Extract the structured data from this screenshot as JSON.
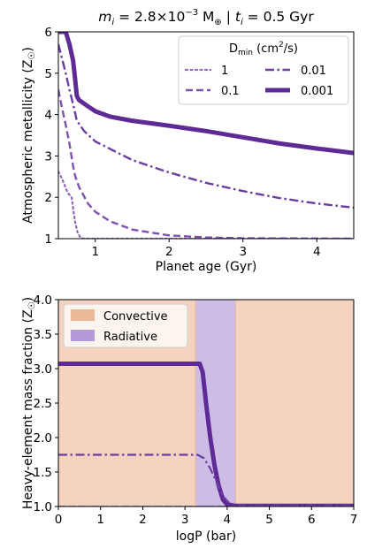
{
  "figure": {
    "title_parts": {
      "m": "m",
      "i": "i",
      "eq1": " = 2.8×10",
      "exp": "−3",
      "unit": " M",
      "earth": "⊕",
      "sep": " | ",
      "t": "t",
      "eq2": " = 0.5 Gyr"
    }
  },
  "chart_data": [
    {
      "type": "line",
      "title": "m_i = 2.8×10^-3 M⊕ | t_i = 0.5 Gyr",
      "xlabel": "Planet age (Gyr)",
      "ylabel": "Atmospheric metallicity (Z☉)",
      "ylabel_main": "Atmospheric metallicity (Z",
      "ylabel_sun": "☉",
      "ylabel_close": ")",
      "xlim": [
        0.5,
        4.5
      ],
      "ylim": [
        1,
        6
      ],
      "xticks": [
        1,
        2,
        3,
        4
      ],
      "yticks": [
        1,
        2,
        3,
        4,
        5,
        6
      ],
      "grid": false,
      "legend": {
        "placement": "top-right",
        "title_main": "D",
        "title_sub": "min",
        "title_unit": " (cm",
        "title_sup": "2",
        "title_close": "/s)",
        "columns": 2
      },
      "series": [
        {
          "name": "1",
          "style": "dotted",
          "color": "#9467bd",
          "width": 2.2,
          "points": [
            [
              0.5,
              2.62
            ],
            [
              0.55,
              2.45
            ],
            [
              0.6,
              2.22
            ],
            [
              0.63,
              2.1
            ],
            [
              0.68,
              2.0
            ],
            [
              0.71,
              1.6
            ],
            [
              0.73,
              1.38
            ],
            [
              0.76,
              1.15
            ],
            [
              0.8,
              1.02
            ],
            [
              0.85,
              1.0
            ],
            [
              1.0,
              1.0
            ],
            [
              2.0,
              1.0
            ],
            [
              3.0,
              1.0
            ],
            [
              4.5,
              1.0
            ]
          ]
        },
        {
          "name": "0.1",
          "style": "dashed",
          "color": "#7d52b0",
          "width": 2.4,
          "points": [
            [
              0.5,
              4.6
            ],
            [
              0.55,
              4.15
            ],
            [
              0.6,
              3.75
            ],
            [
              0.65,
              3.3
            ],
            [
              0.7,
              2.75
            ],
            [
              0.73,
              2.5
            ],
            [
              0.78,
              2.25
            ],
            [
              0.9,
              1.85
            ],
            [
              1.0,
              1.65
            ],
            [
              1.2,
              1.42
            ],
            [
              1.5,
              1.22
            ],
            [
              2.0,
              1.08
            ],
            [
              2.5,
              1.03
            ],
            [
              3.0,
              1.01
            ],
            [
              4.5,
              1.0
            ]
          ]
        },
        {
          "name": "0.01",
          "style": "dashdot",
          "color": "#6b3fa2",
          "width": 2.4,
          "points": [
            [
              0.5,
              5.7
            ],
            [
              0.55,
              5.35
            ],
            [
              0.6,
              5.0
            ],
            [
              0.65,
              4.6
            ],
            [
              0.7,
              4.25
            ],
            [
              0.75,
              3.85
            ],
            [
              0.85,
              3.6
            ],
            [
              1.0,
              3.35
            ],
            [
              1.5,
              2.9
            ],
            [
              2.0,
              2.6
            ],
            [
              2.5,
              2.35
            ],
            [
              3.0,
              2.15
            ],
            [
              3.5,
              1.98
            ],
            [
              4.0,
              1.85
            ],
            [
              4.5,
              1.75
            ]
          ]
        },
        {
          "name": "0.001",
          "style": "solid",
          "color": "#5e2a96",
          "width": 5,
          "points": [
            [
              0.5,
              6.0
            ],
            [
              0.6,
              6.0
            ],
            [
              0.65,
              5.7
            ],
            [
              0.7,
              5.3
            ],
            [
              0.73,
              4.8
            ],
            [
              0.75,
              4.45
            ],
            [
              0.78,
              4.35
            ],
            [
              0.9,
              4.2
            ],
            [
              1.0,
              4.08
            ],
            [
              1.2,
              3.95
            ],
            [
              1.5,
              3.85
            ],
            [
              2.0,
              3.73
            ],
            [
              2.5,
              3.6
            ],
            [
              3.0,
              3.45
            ],
            [
              3.5,
              3.3
            ],
            [
              4.0,
              3.18
            ],
            [
              4.5,
              3.07
            ]
          ]
        }
      ]
    },
    {
      "type": "line",
      "xlabel": "logP (bar)",
      "ylabel": "Heavy-element mass fraction (Z☉)",
      "ylabel_main": "Heavy-element mass fraction (Z",
      "ylabel_sun": "☉",
      "ylabel_close": ")",
      "xlim": [
        0,
        7
      ],
      "ylim": [
        1.0,
        4.0
      ],
      "xticks": [
        0,
        1,
        2,
        3,
        4,
        5,
        6,
        7
      ],
      "yticks": [
        "1.0",
        "1.5",
        "2.0",
        "2.5",
        "3.0",
        "3.5",
        "4.0"
      ],
      "grid": false,
      "legend": {
        "placement": "top-left"
      },
      "regions": [
        {
          "name": "Convective",
          "x": [
            0,
            3.25
          ],
          "color": "#f4d4c0"
        },
        {
          "name": "Radiative",
          "x": [
            3.25,
            4.2
          ],
          "color": "#cdbde6"
        },
        {
          "name": "Convective",
          "x": [
            4.2,
            7
          ],
          "color": "#f4d4c0"
        }
      ],
      "legend_entries": [
        {
          "label": "Convective",
          "color": "#eab896"
        },
        {
          "label": "Radiative",
          "color": "#b49ad6"
        }
      ],
      "series": [
        {
          "style": "solid",
          "color": "#5e2a96",
          "width": 5,
          "points": [
            [
              0,
              3.07
            ],
            [
              3.35,
              3.07
            ],
            [
              3.42,
              2.95
            ],
            [
              3.5,
              2.5
            ],
            [
              3.6,
              2.0
            ],
            [
              3.7,
              1.6
            ],
            [
              3.8,
              1.3
            ],
            [
              3.9,
              1.1
            ],
            [
              4.0,
              1.03
            ],
            [
              4.2,
              1.01
            ],
            [
              7,
              1.01
            ]
          ]
        },
        {
          "style": "dashdot",
          "color": "#6b3fa2",
          "width": 2.2,
          "points": [
            [
              0,
              1.75
            ],
            [
              3.3,
              1.75
            ],
            [
              3.45,
              1.7
            ],
            [
              3.6,
              1.55
            ],
            [
              3.75,
              1.35
            ],
            [
              3.9,
              1.15
            ],
            [
              4.05,
              1.05
            ],
            [
              4.2,
              1.02
            ],
            [
              7,
              1.02
            ]
          ]
        },
        {
          "style": "dashed",
          "color": "#7d52b0",
          "width": 1.6,
          "points": [
            [
              0,
              1.0
            ],
            [
              7,
              1.0
            ]
          ]
        },
        {
          "style": "dotted",
          "color": "#9467bd",
          "width": 1.6,
          "points": [
            [
              0,
              1.0
            ],
            [
              7,
              1.0
            ]
          ]
        }
      ]
    }
  ]
}
